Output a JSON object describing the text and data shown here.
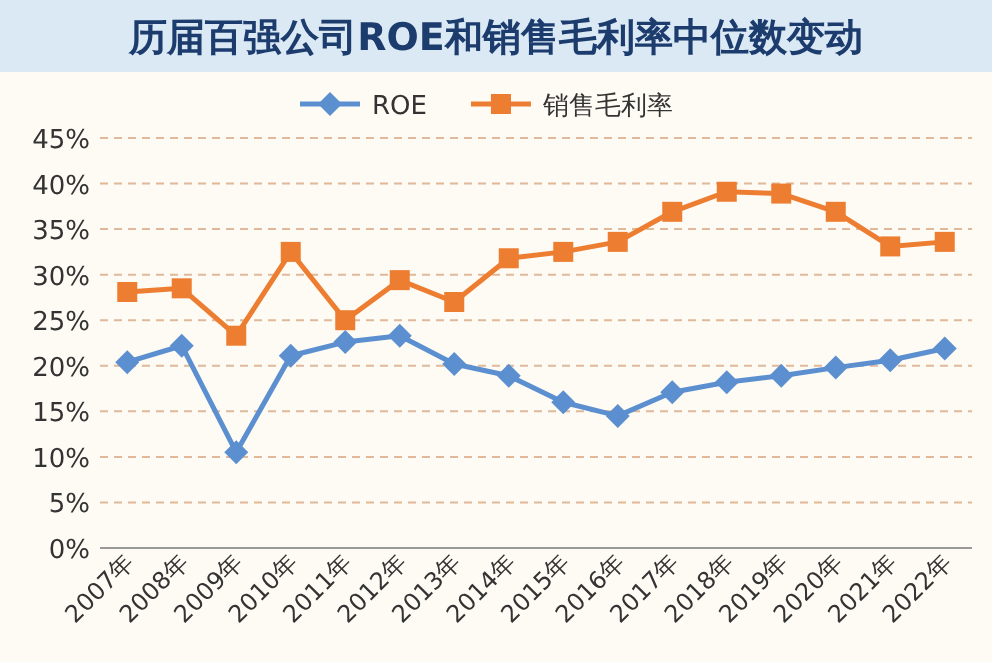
{
  "chart_data": {
    "type": "line",
    "title": "历届百强公司ROE和销售毛利率中位数变动",
    "categories": [
      "2007年",
      "2008年",
      "2009年",
      "2010年",
      "2011年",
      "2012年",
      "2013年",
      "2014年",
      "2015年",
      "2016年",
      "2017年",
      "2018年",
      "2019年",
      "2020年",
      "2021年",
      "2022年"
    ],
    "series": [
      {
        "name": "ROE",
        "color": "#5b8fd0",
        "marker": "diamond",
        "values": [
          20.4,
          22.2,
          10.5,
          21.1,
          22.6,
          23.3,
          20.2,
          18.9,
          16.0,
          14.5,
          17.1,
          18.2,
          18.9,
          19.8,
          20.6,
          21.9
        ]
      },
      {
        "name": "销售毛利率",
        "color": "#ed7d31",
        "marker": "square",
        "values": [
          28.1,
          28.5,
          23.3,
          32.5,
          25.0,
          29.4,
          27.0,
          31.8,
          32.5,
          33.6,
          36.9,
          39.1,
          38.9,
          36.9,
          33.1,
          33.6
        ]
      }
    ],
    "ylim": [
      0,
      45
    ],
    "yticks": [
      {
        "value": 0,
        "label": "0%"
      },
      {
        "value": 5,
        "label": "5%"
      },
      {
        "value": 10,
        "label": "10%"
      },
      {
        "value": 15,
        "label": "15%"
      },
      {
        "value": 20,
        "label": "20%"
      },
      {
        "value": 25,
        "label": "25%"
      },
      {
        "value": 30,
        "label": "30%"
      },
      {
        "value": 35,
        "label": "35%"
      },
      {
        "value": 40,
        "label": "40%"
      },
      {
        "value": 45,
        "label": "45%"
      }
    ],
    "grid": "y",
    "legend": "top",
    "line_style": "solid"
  }
}
